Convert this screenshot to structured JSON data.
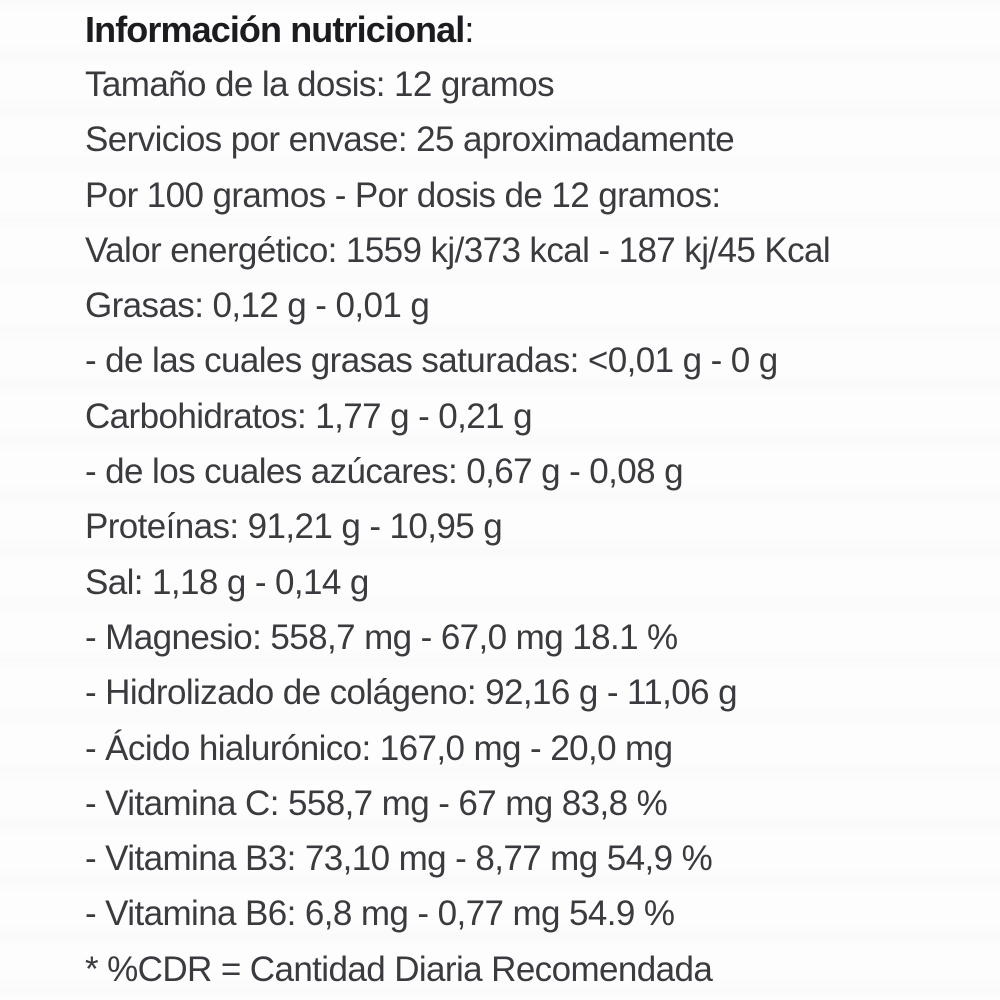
{
  "document_type": "nutrition-facts-label",
  "language": "es",
  "colors": {
    "title_text": "#1b1b20",
    "body_text": "#3a3a3f",
    "background": "#fdfdfd"
  },
  "title": {
    "text": "Información nutricional",
    "colon": ":"
  },
  "serving_info": {
    "serving_size": "12 gramos",
    "servings_per_container": "25 aproximadamente",
    "column_basis": "Por 100 gramos - Por dosis de 12 gramos"
  },
  "nutrition_lines": [
    "Tamaño de la dosis: 12 gramos",
    "Servicios por envase: 25 aproximadamente",
    "Por 100 gramos - Por dosis de 12 gramos:",
    "Valor energético: 1559 kj/373 kcal - 187 kj/45 Kcal",
    "Grasas: 0,12 g - 0,01 g",
    "- de las cuales grasas saturadas: <0,01 g - 0 g",
    "Carbohidratos: 1,77 g - 0,21 g",
    "- de los cuales azúcares: 0,67 g - 0,08 g",
    "Proteínas: 91,21 g - 10,95 g",
    "Sal: 1,18 g - 0,14 g",
    "- Magnesio: 558,7 mg - 67,0 mg 18.1 %",
    "- Hidrolizado de colágeno: 92,16 g - 11,06 g",
    "- Ácido hialurónico: 167,0 mg - 20,0 mg",
    "- Vitamina C: 558,7 mg - 67 mg 83,8 %",
    "- Vitamina B3: 73,10 mg - 8,77 mg 54,9 %",
    "- Vitamina B6: 6,8 mg - 0,77 mg 54.9 %",
    "* %CDR = Cantidad Diaria Recomendada"
  ],
  "footnote": "* %CDR = Cantidad Diaria Recomendada"
}
